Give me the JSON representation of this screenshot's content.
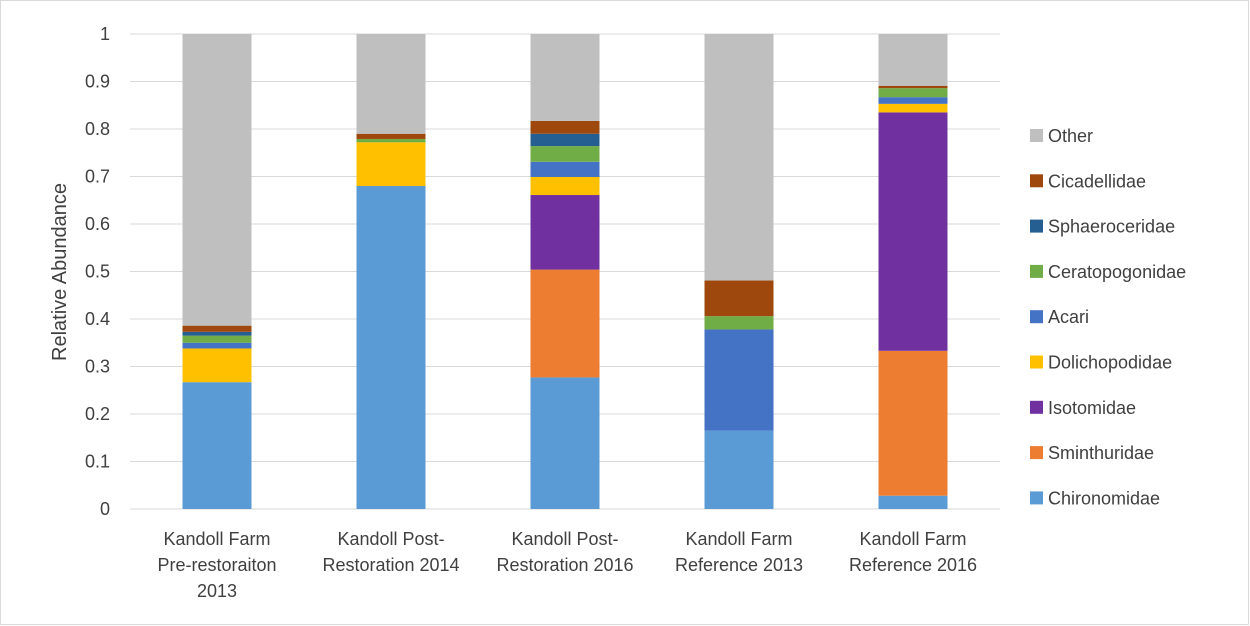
{
  "chart_data": {
    "type": "bar",
    "stacked": true,
    "title": "",
    "xlabel": "",
    "ylabel": "Relative Abundance",
    "ylim": [
      0,
      1
    ],
    "yticks": [
      "0",
      "0.1",
      "0.2",
      "0.3",
      "0.4",
      "0.5",
      "0.6",
      "0.7",
      "0.8",
      "0.9",
      "1"
    ],
    "grid": true,
    "legend_position": "right",
    "categories": [
      [
        "Kandoll Farm",
        "Pre-restoraiton",
        "2013"
      ],
      [
        "Kandoll Post-",
        "Restoration 2014"
      ],
      [
        "Kandoll Post-",
        "Restoration 2016"
      ],
      [
        "Kandoll Farm",
        "Reference 2013"
      ],
      [
        "Kandoll Farm",
        "Reference 2016"
      ]
    ],
    "series": [
      {
        "name": "Chironomidae",
        "color": "#5b9bd5",
        "values": [
          0.267,
          0.68,
          0.277,
          0.165,
          0.028
        ]
      },
      {
        "name": "Sminthuridae",
        "color": "#ed7d31",
        "values": [
          0,
          0,
          0.227,
          0,
          0.305
        ]
      },
      {
        "name": "Isotomidae",
        "color": "#7030a0",
        "values": [
          0,
          0,
          0.157,
          0,
          0.502
        ]
      },
      {
        "name": "Dolichopodidae",
        "color": "#ffc000",
        "values": [
          0.071,
          0.092,
          0.038,
          0,
          0.018
        ]
      },
      {
        "name": "Acari",
        "color": "#4472c4",
        "values": [
          0.012,
          0,
          0.032,
          0.213,
          0.014
        ]
      },
      {
        "name": "Ceratopogonidae",
        "color": "#70ad47",
        "values": [
          0.015,
          0.007,
          0.033,
          0.028,
          0.019
        ]
      },
      {
        "name": "Sphaeroceridae",
        "color": "#255e91",
        "values": [
          0.008,
          0,
          0.026,
          0,
          0
        ]
      },
      {
        "name": "Cicadellidae",
        "color": "#9e480e",
        "values": [
          0.013,
          0.011,
          0.027,
          0.075,
          0.005
        ]
      },
      {
        "name": "Other",
        "color": "#bfbfbf",
        "values": [
          0.614,
          0.21,
          0.183,
          0.519,
          0.109
        ]
      }
    ]
  }
}
